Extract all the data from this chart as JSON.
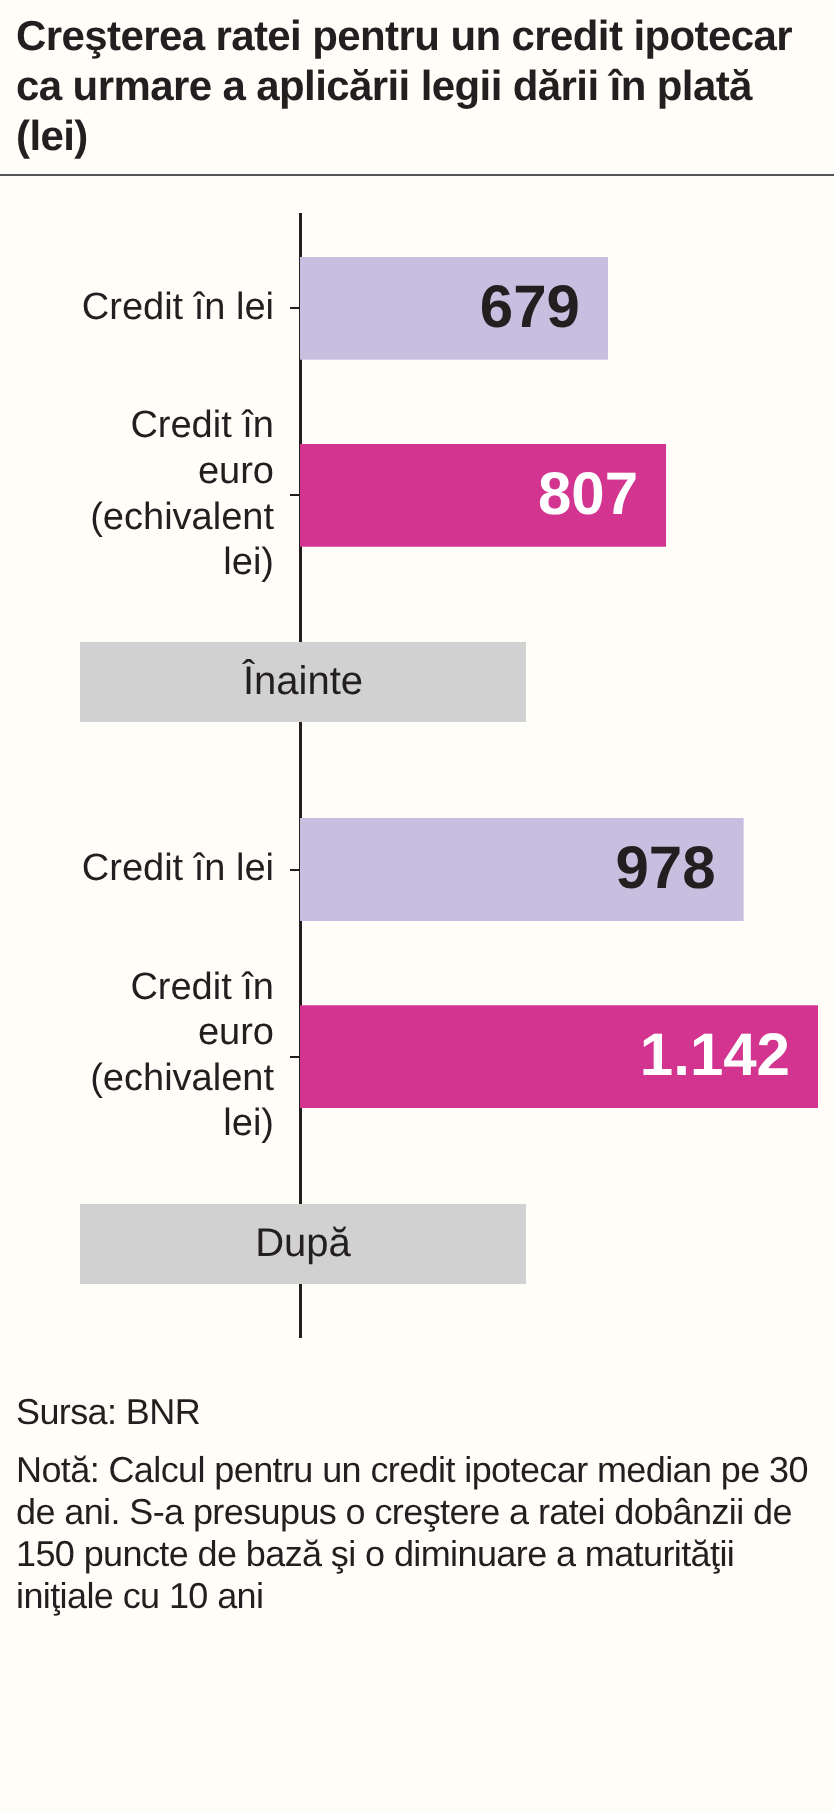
{
  "chart_data": {
    "type": "bar",
    "orientation": "horizontal",
    "title": "Creşterea ratei pentru un credit ipotecar ca urmare a aplicării legii dării în plată (lei)",
    "categories": [
      "Credit în lei",
      "Credit în euro (echivalent lei)",
      null,
      "Credit în lei",
      "Credit în euro (echivalent lei)",
      null
    ],
    "values": [
      679,
      807,
      null,
      978,
      1142,
      null
    ],
    "value_labels": [
      "679",
      "807",
      null,
      "978",
      "1.142",
      null
    ],
    "colors": [
      "#c6bfdf",
      "#d2348f",
      null,
      "#c6bfdf",
      "#d2348f",
      null
    ],
    "grid": false,
    "legend": false,
    "annotations": [
      "Înainte",
      "După",
      "Sursa: BNR",
      "Notă: Calcul pentru un credit ipotecar median pe 30 de ani. S-a presupus o creştere a ratei dobânzii de 150 puncte de bază şi o diminuare a maturităţii iniţiale cu 10 ani"
    ]
  }
}
